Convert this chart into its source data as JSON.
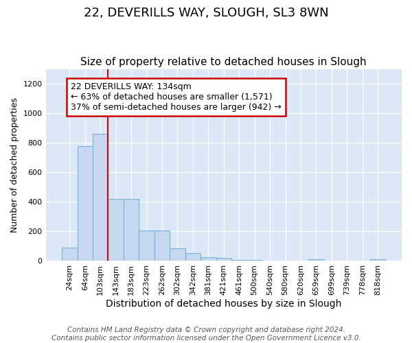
{
  "title1": "22, DEVERILLS WAY, SLOUGH, SL3 8WN",
  "title2": "Size of property relative to detached houses in Slough",
  "xlabel": "Distribution of detached houses by size in Slough",
  "ylabel": "Number of detached properties",
  "categories": [
    "24sqm",
    "64sqm",
    "103sqm",
    "143sqm",
    "183sqm",
    "223sqm",
    "262sqm",
    "302sqm",
    "342sqm",
    "381sqm",
    "421sqm",
    "461sqm",
    "500sqm",
    "540sqm",
    "580sqm",
    "620sqm",
    "659sqm",
    "699sqm",
    "739sqm",
    "778sqm",
    "818sqm"
  ],
  "values": [
    90,
    780,
    860,
    420,
    420,
    205,
    205,
    85,
    55,
    25,
    20,
    5,
    5,
    0,
    0,
    0,
    12,
    0,
    0,
    0,
    12
  ],
  "bar_color": "#c5d8f0",
  "bar_edge_color": "#7bafd4",
  "vline_color": "#cc0000",
  "vline_x": 3,
  "annotation_text": "22 DEVERILLS WAY: 134sqm\n← 63% of detached houses are smaller (1,571)\n37% of semi-detached houses are larger (942) →",
  "annotation_box_color": "#ffffff",
  "annotation_box_edge": "#cc0000",
  "ylim": [
    0,
    1300
  ],
  "yticks": [
    0,
    200,
    400,
    600,
    800,
    1000,
    1200
  ],
  "fig_bg_color": "#ffffff",
  "plot_bg_color": "#dce8f5",
  "footer": "Contains HM Land Registry data © Crown copyright and database right 2024.\nContains public sector information licensed under the Open Government Licence v3.0.",
  "title1_fontsize": 13,
  "title2_fontsize": 11,
  "xlabel_fontsize": 10,
  "ylabel_fontsize": 9,
  "annot_fontsize": 9,
  "tick_fontsize": 8,
  "footer_fontsize": 7.5
}
